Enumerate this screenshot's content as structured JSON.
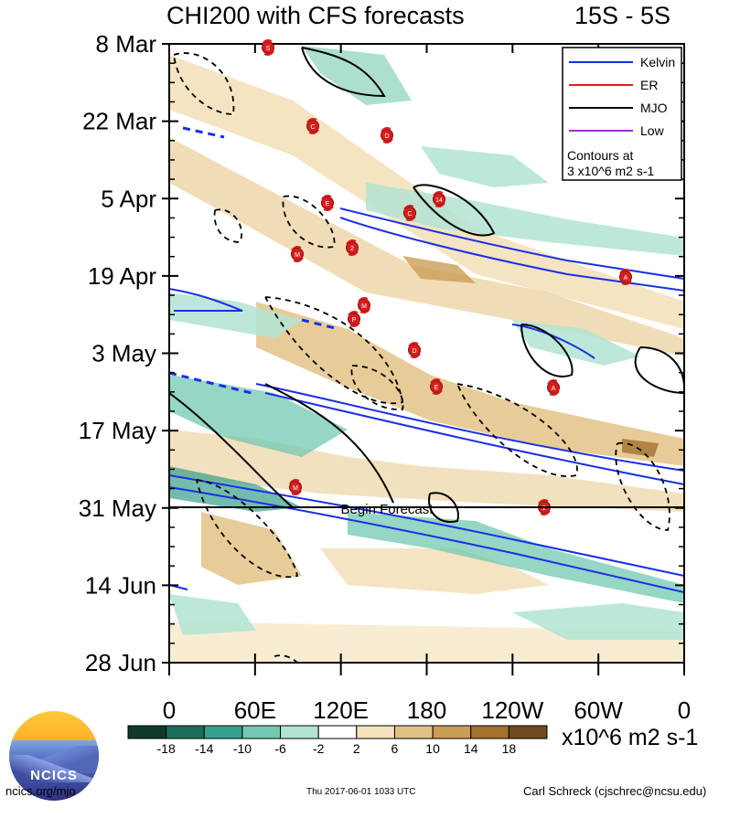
{
  "header": {
    "title": "CHI200 with CFS forecasts",
    "region": "15S - 5S"
  },
  "chart_data": {
    "type": "heatmap",
    "title": "CHI200 with CFS forecasts",
    "subtitle": "15S - 5S",
    "x_tick_labels": [
      "0",
      "60E",
      "120E",
      "180",
      "120W",
      "60W",
      "0"
    ],
    "y_tick_labels": [
      "8 Mar",
      "22 Mar",
      "5 Apr",
      "19 Apr",
      "3 May",
      "17 May",
      "31 May",
      "14 Jun",
      "28 Jun"
    ],
    "forecast_label": "Begin Forecast",
    "legend": {
      "placement": "top-right",
      "entries": [
        {
          "name": "Kelvin",
          "color": "#1a2ee6"
        },
        {
          "name": "ER",
          "color": "#e61a1a"
        },
        {
          "name": "MJO",
          "color": "#000000"
        },
        {
          "name": "Low",
          "color": "#9a2ed0"
        }
      ],
      "note_line1": "Contours at",
      "note_line2": "3 x10^6 m2 s-1"
    },
    "colorbar": {
      "labels": [
        "-18",
        "-14",
        "-10",
        "-6",
        "-2",
        "2",
        "6",
        "10",
        "14",
        "18"
      ],
      "colors": [
        "#0f3a2a",
        "#1a6e5a",
        "#35a08a",
        "#72c8b0",
        "#b2e4d2",
        "#ffffff",
        "#f6e3bd",
        "#e0c285",
        "#cc9d55",
        "#a4702e",
        "#6e4a1e"
      ],
      "units": "x10^6 m2 s-1"
    },
    "storm_labels": [
      "S",
      "C",
      "D",
      "E",
      "14",
      "C",
      "M",
      "2",
      "A",
      "M",
      "P",
      "D",
      "E",
      "A",
      "M",
      "2"
    ]
  },
  "footer": {
    "website": "ncics.org/mjo",
    "timestamp": "Thu 2017-06-01 1033 UTC",
    "author": "Carl Schreck (cjschrec@ncsu.edu)",
    "logo_text": "NCICS"
  }
}
